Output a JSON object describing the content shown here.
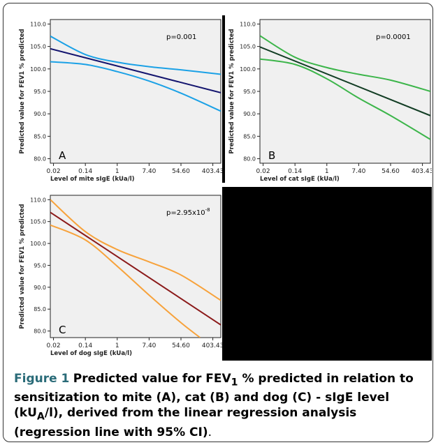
{
  "caption": {
    "label": "Figure 1",
    "text_a": "Predicted value for FEV",
    "sub1": "1",
    "text_b": " % predicted in relation to sensitization to mite (A), cat (B) and dog (C) - sIgE level (kU",
    "sub2": "A",
    "text_c": "/l), derived from the linear regression analysis (regression line with 95% CI)",
    "tail": "."
  },
  "colors": {
    "blue_ci": "#1ba1e6",
    "blue_line": "#13146e",
    "green_ci": "#3cb54a",
    "green_line": "#123d24",
    "orange_ci": "#f7a23b",
    "red_line": "#8b1a1a",
    "plot_bg": "#f0f0f0"
  },
  "chart_data": [
    {
      "type": "line",
      "panel_label": "A",
      "annotation": "p=0.001",
      "xlabel": "Level of mite sIgE (kUa/l)",
      "ylabel": "Predicted value for FEV1 % predicted",
      "x_ticks": [
        "0.02",
        "0.14",
        "1",
        "7.40",
        "54.60",
        "403.43"
      ],
      "x_tick_values": [
        -4,
        -2,
        0,
        2,
        4,
        6
      ],
      "xlim": [
        -4.2,
        6.5
      ],
      "y_ticks": [
        "80.0",
        "85.0",
        "90.0",
        "95.0",
        "100.0",
        "105.0",
        "110.0"
      ],
      "ylim": [
        79,
        111
      ],
      "series": [
        {
          "role": "upper",
          "x": [
            -4.2,
            -2,
            0,
            2,
            4,
            6.5
          ],
          "y": [
            107.3,
            103.2,
            101.5,
            100.5,
            99.8,
            98.8
          ]
        },
        {
          "role": "fit",
          "x": [
            -4.2,
            6.5
          ],
          "y": [
            104.5,
            94.7
          ]
        },
        {
          "role": "lower",
          "x": [
            -4.2,
            -2,
            0,
            2,
            4,
            6.5
          ],
          "y": [
            101.6,
            101.0,
            99.4,
            97.3,
            94.6,
            90.6
          ]
        }
      ]
    },
    {
      "type": "line",
      "panel_label": "B",
      "annotation": "p=0.0001",
      "xlabel": "Level of cat sIgE (kUa/l)",
      "ylabel": "Predicted value for FEV1 % predicted",
      "x_ticks": [
        "0.02",
        "0.14",
        "1",
        "7.40",
        "54.60",
        "403.43"
      ],
      "x_tick_values": [
        -4,
        -2,
        0,
        2,
        4,
        6
      ],
      "xlim": [
        -4.2,
        6.5
      ],
      "y_ticks": [
        "80.0",
        "85.0",
        "90.0",
        "95.0",
        "100.0",
        "105.0",
        "110.0"
      ],
      "ylim": [
        79,
        111
      ],
      "series": [
        {
          "role": "upper",
          "x": [
            -4.2,
            -2,
            0,
            2,
            4,
            6.5
          ],
          "y": [
            107.4,
            102.6,
            100.3,
            98.8,
            97.5,
            95.0
          ]
        },
        {
          "role": "fit",
          "x": [
            -4.2,
            6.5
          ],
          "y": [
            104.9,
            89.6
          ]
        },
        {
          "role": "lower",
          "x": [
            -4.2,
            -2,
            0,
            2,
            4,
            6.5
          ],
          "y": [
            102.2,
            101.0,
            97.8,
            93.5,
            89.6,
            84.3
          ]
        }
      ]
    },
    {
      "type": "line",
      "panel_label": "C",
      "annotation": "p=2.95x10",
      "annotation_sup": "-8",
      "xlabel": "Level of dog sIgE (kUa/l)",
      "ylabel": "Predicted value for FEV1 % predicted",
      "x_ticks": [
        "0.02",
        "0.14",
        "1",
        "7.40",
        "54.60",
        "403.43"
      ],
      "x_tick_values": [
        -4,
        -2,
        0,
        2,
        4,
        6
      ],
      "xlim": [
        -4.2,
        6.5
      ],
      "y_ticks": [
        "80.0",
        "85.0",
        "90.0",
        "95.0",
        "100.0",
        "105.0",
        "110.0"
      ],
      "ylim": [
        78.5,
        111
      ],
      "series": [
        {
          "role": "upper",
          "x": [
            -4.2,
            -2,
            0,
            2,
            4,
            6.5
          ],
          "y": [
            110.0,
            102.7,
            98.6,
            95.8,
            92.8,
            87.0
          ]
        },
        {
          "role": "fit",
          "x": [
            -4.2,
            6.5
          ],
          "y": [
            107.1,
            81.4
          ]
        },
        {
          "role": "lower",
          "x": [
            -4.2,
            -2,
            0,
            2,
            4,
            5.2
          ],
          "y": [
            104.2,
            100.8,
            94.8,
            88.2,
            81.9,
            78.5
          ]
        }
      ]
    }
  ]
}
